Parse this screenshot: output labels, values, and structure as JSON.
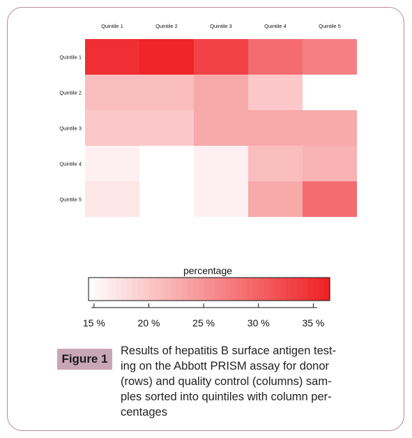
{
  "chart_data": {
    "type": "heatmap",
    "columns": [
      "Quintile 1",
      "Quintile 2",
      "Quintile 3",
      "Quintile 4",
      "Quintile 5"
    ],
    "rows": [
      "Quintile 1",
      "Quintile 2",
      "Quintile 3",
      "Quintile 4",
      "Quintile 5"
    ],
    "values": [
      [
        35,
        36,
        33,
        29,
        27
      ],
      [
        21,
        21,
        23,
        20,
        null
      ],
      [
        20,
        20,
        23,
        23,
        23
      ],
      [
        16,
        null,
        16,
        21,
        22
      ],
      [
        17,
        null,
        16,
        23,
        29
      ]
    ],
    "legend": {
      "title": "percentage",
      "ticks": [
        "15 %",
        "20 %",
        "25 %",
        "30 %",
        "35 %"
      ],
      "tick_values": [
        15,
        20,
        25,
        30,
        35
      ],
      "range": [
        14.5,
        36.5
      ]
    },
    "colors": {
      "low": "#ffffff",
      "high": "#ee2024"
    }
  },
  "figure": {
    "label": "Figure 1",
    "caption_lines": [
      "Results of hepatitis B surface antigen test-",
      "ing on the Abbott PRISM assay for donor",
      "(rows) and quality control (columns) sam-",
      "ples sorted into quintiles with column per-",
      "centages"
    ]
  }
}
